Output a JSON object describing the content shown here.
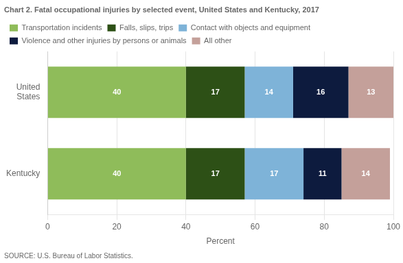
{
  "chart_data": {
    "type": "bar",
    "orientation": "horizontal",
    "stacked": true,
    "title": "Chart 2. Fatal occupational injuries by selected event, United States and Kentucky, 2017",
    "categories": [
      "United\nStates",
      "Kentucky"
    ],
    "series": [
      {
        "name": "Transportation incidents",
        "color": "#8FBC5A",
        "values": [
          40,
          40
        ]
      },
      {
        "name": "Falls, slips, trips",
        "color": "#2D5016",
        "values": [
          17,
          17
        ]
      },
      {
        "name": "Contact with objects and equipment",
        "color": "#7EB3D8",
        "values": [
          14,
          17
        ]
      },
      {
        "name": "Violence and other injuries by persons or animals",
        "color": "#0D1B3E",
        "values": [
          16,
          11
        ]
      },
      {
        "name": "All other",
        "color": "#C4A09A",
        "values": [
          13,
          14
        ]
      }
    ],
    "xlabel": "Percent",
    "xlim": [
      0,
      100
    ],
    "xticks": [
      0,
      20,
      40,
      60,
      80,
      100
    ],
    "grid": "x",
    "legend": "top",
    "data_labels": true,
    "source": "SOURCE: U.S. Bureau of Labor Statistics."
  }
}
